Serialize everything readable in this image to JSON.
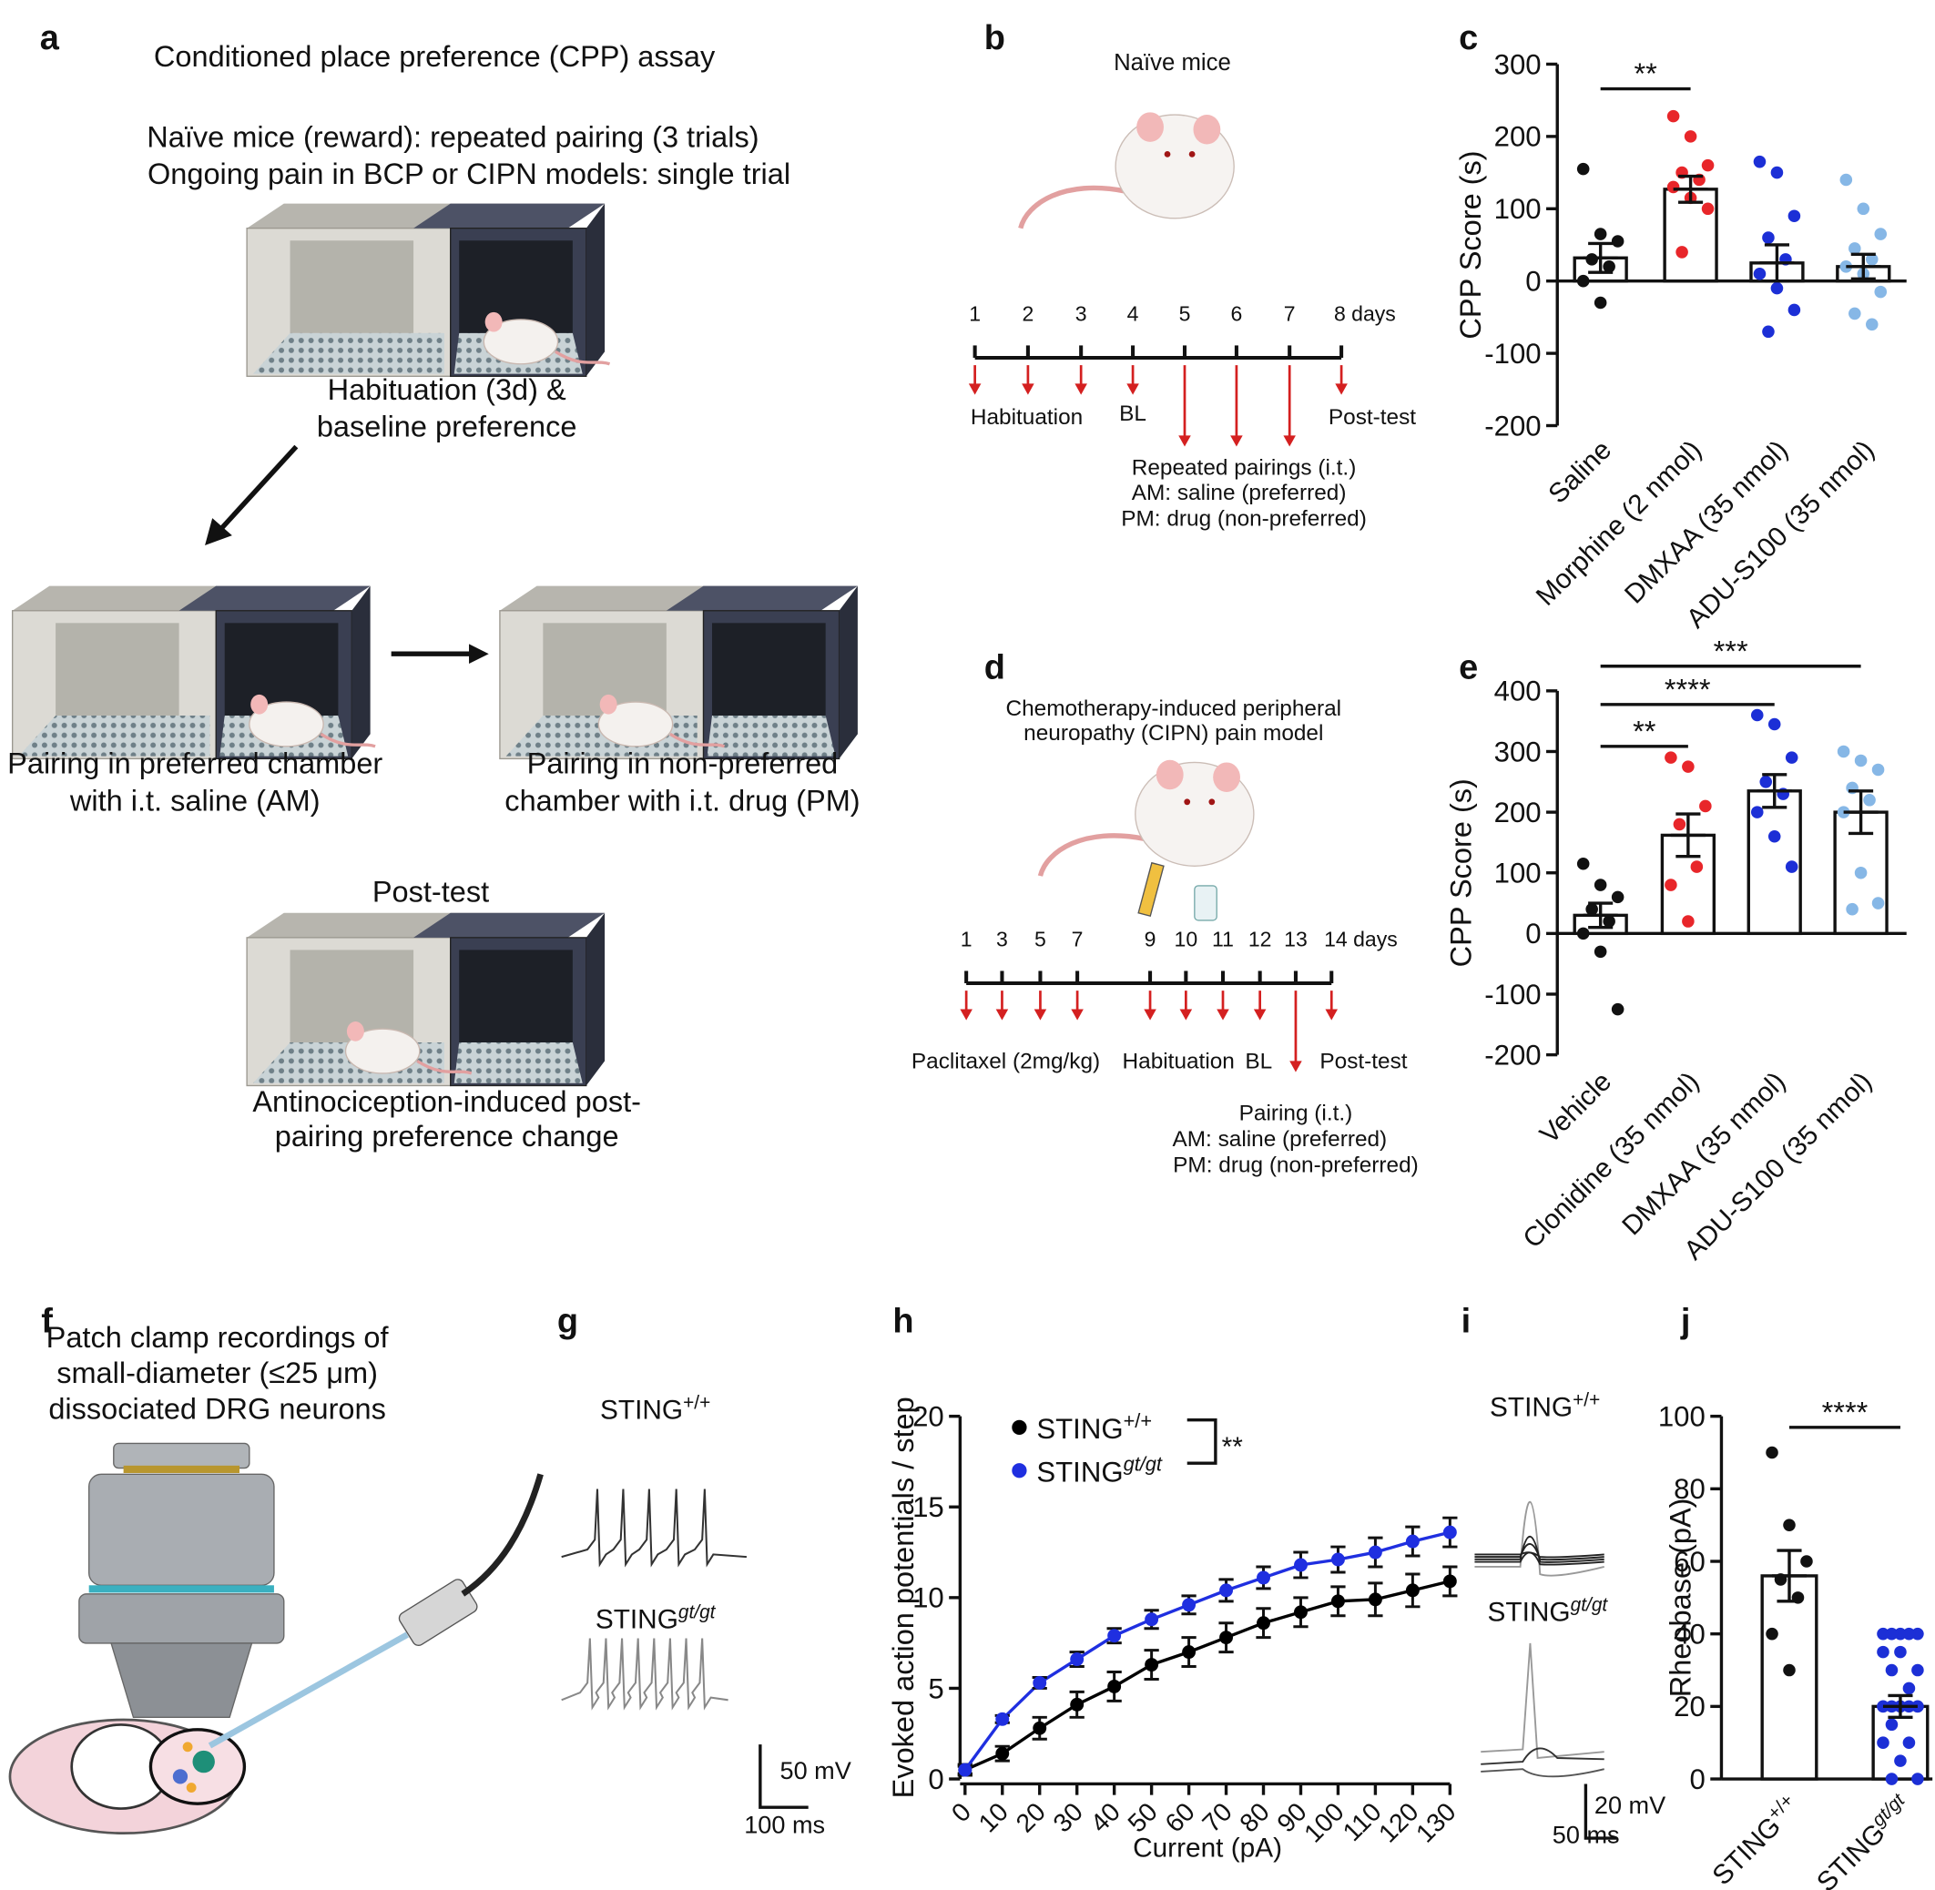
{
  "labels": [
    "a",
    "b",
    "c",
    "d",
    "e",
    "f",
    "g",
    "h",
    "i",
    "j"
  ],
  "a": {
    "title": "Conditioned place preference (CPP) assay",
    "protocol": [
      "Naïve mice (reward): repeated pairing (3 trials)",
      "Ongoing pain in BCP or CIPN models: single trial"
    ],
    "habituation": [
      "Habituation (3d) &",
      "baseline preference"
    ],
    "pairing_am": [
      "Pairing in preferred chamber",
      "with i.t. saline (AM)"
    ],
    "pairing_pm": [
      "Pairing in non-preferred",
      "chamber with i.t. drug (PM)"
    ],
    "post_test": "Post-test",
    "outcome": [
      "Antinociception-induced post-",
      "pairing preference change"
    ]
  },
  "b": {
    "title": "Naïve mice",
    "days": [
      "1",
      "2",
      "3",
      "4",
      "5",
      "6",
      "7",
      "8 days"
    ],
    "events": [
      "Habituation",
      "BL",
      "Post-test"
    ],
    "pairing": [
      "Repeated pairings (i.t.)",
      "AM: saline (preferred)",
      "PM: drug (non-preferred)"
    ]
  },
  "d": {
    "title": [
      "Chemotherapy-induced peripheral",
      "neuropathy (CIPN) pain model"
    ],
    "days": [
      "1",
      "3",
      "5",
      "7",
      "9",
      "10",
      "11",
      "12",
      "13",
      "14 days"
    ],
    "events": [
      "Paclitaxel (2mg/kg)",
      "Habituation",
      "BL",
      "Post-test"
    ],
    "pairing": [
      "Pairing (i.t.)",
      "AM: saline (preferred)",
      "PM: drug (non-preferred)"
    ]
  },
  "f": {
    "title": [
      "Patch clamp recordings of",
      "small-diameter (≤25 μm)",
      "dissociated DRG neurons"
    ]
  },
  "g": {
    "genotypes": [
      {
        "base": "STING",
        "sup": "+/+"
      },
      {
        "base": "STING",
        "sup": "gt/gt"
      }
    ],
    "scale": [
      "50 mV",
      "100 ms"
    ]
  },
  "i": {
    "genotypes": [
      {
        "base": "STING",
        "sup": "+/+"
      },
      {
        "base": "STING",
        "sup": "gt/gt"
      }
    ],
    "scale": [
      "20 mV",
      "50 ms"
    ]
  },
  "chart_data": [
    {
      "type": "bar",
      "ylabel": "CPP Score (s)",
      "categories": [
        "Saline",
        "Morphine (2 nmol)",
        "DMXAA (35 nmol)",
        "ADU-S100 (35 nmol)"
      ],
      "values": [
        32,
        127,
        25,
        20
      ],
      "errors": [
        20,
        18,
        25,
        17
      ],
      "points": [
        [
          155,
          65,
          55,
          30,
          20,
          0,
          -30
        ],
        [
          228,
          200,
          160,
          150,
          140,
          130,
          115,
          100,
          40
        ],
        [
          165,
          150,
          90,
          60,
          30,
          10,
          -10,
          -40,
          -70
        ],
        [
          140,
          100,
          65,
          45,
          30,
          20,
          10,
          -15,
          -45,
          -60
        ]
      ],
      "colors": [
        "#111111",
        "#e8262a",
        "#1c2fd6",
        "#86b7e6"
      ],
      "ylim": [
        -200,
        300
      ],
      "yticks": [
        -200,
        -100,
        0,
        100,
        200,
        300
      ],
      "annotations": [
        {
          "text": "**",
          "between": [
            0,
            1
          ]
        }
      ]
    },
    {
      "type": "bar",
      "ylabel": "CPP Score (s)",
      "categories": [
        "Vehicle",
        "Clonidine (35 nmol)",
        "DMXAA (35 nmol)",
        "ADU-S100 (35 nmol)"
      ],
      "values": [
        30,
        162,
        235,
        200
      ],
      "errors": [
        20,
        35,
        27,
        35
      ],
      "points": [
        [
          115,
          80,
          60,
          40,
          20,
          0,
          -30,
          -125
        ],
        [
          290,
          275,
          210,
          180,
          110,
          80,
          20
        ],
        [
          360,
          345,
          290,
          250,
          230,
          200,
          160,
          110
        ],
        [
          300,
          285,
          270,
          240,
          220,
          200,
          100,
          50,
          40
        ]
      ],
      "colors": [
        "#111111",
        "#e8262a",
        "#1c2fd6",
        "#86b7e6"
      ],
      "ylim": [
        -200,
        400
      ],
      "yticks": [
        -200,
        -100,
        0,
        100,
        200,
        300,
        400
      ],
      "annotations": [
        {
          "text": "**",
          "between": [
            0,
            1
          ]
        },
        {
          "text": "****",
          "between": [
            0,
            2
          ]
        },
        {
          "text": "***",
          "between": [
            0,
            3
          ]
        }
      ]
    },
    {
      "type": "line",
      "xlabel": "Current (pA)",
      "ylabel": "Evoked action potentials / step",
      "x": [
        0,
        10,
        20,
        30,
        40,
        50,
        60,
        70,
        80,
        90,
        100,
        110,
        120,
        130
      ],
      "xlim": [
        0,
        130
      ],
      "xticks": [
        0,
        10,
        20,
        30,
        40,
        50,
        60,
        70,
        80,
        90,
        100,
        110,
        120,
        130
      ],
      "ylim": [
        0,
        20
      ],
      "yticks": [
        0,
        5,
        10,
        15,
        20
      ],
      "series": [
        {
          "name": "STING",
          "name_sup": "+/+",
          "color": "#000000",
          "values": [
            0.5,
            1.4,
            2.8,
            4.1,
            5.1,
            6.3,
            7.0,
            7.8,
            8.6,
            9.2,
            9.8,
            9.9,
            10.4,
            10.9
          ],
          "errors": [
            0.3,
            0.4,
            0.6,
            0.7,
            0.8,
            0.8,
            0.8,
            0.8,
            0.8,
            0.8,
            0.8,
            0.9,
            0.9,
            0.8
          ]
        },
        {
          "name": "STING",
          "name_sup": "gt/gt",
          "color": "#1f2fe0",
          "values": [
            0.5,
            3.3,
            5.3,
            6.6,
            7.9,
            8.8,
            9.6,
            10.4,
            11.1,
            11.8,
            12.1,
            12.5,
            13.1,
            13.6
          ],
          "errors": [
            0.2,
            0.2,
            0.3,
            0.4,
            0.4,
            0.5,
            0.5,
            0.6,
            0.6,
            0.7,
            0.7,
            0.8,
            0.8,
            0.8
          ]
        }
      ],
      "annotation": "**"
    },
    {
      "type": "bar",
      "ylabel": "Rheobase (pA)",
      "categories": [
        "STING",
        "STING"
      ],
      "category_sups": [
        "+/+",
        "gt/gt"
      ],
      "values": [
        56,
        20
      ],
      "errors": [
        7,
        3
      ],
      "points": [
        [
          90,
          70,
          60,
          55,
          50,
          40,
          30
        ],
        [
          40,
          40,
          40,
          40,
          40,
          35,
          35,
          30,
          30,
          25,
          20,
          20,
          20,
          20,
          20,
          20,
          20,
          20,
          15,
          10,
          10,
          5,
          0,
          0
        ]
      ],
      "colors": [
        "#111111",
        "#1c2fd6"
      ],
      "ylim": [
        0,
        100
      ],
      "yticks": [
        0,
        20,
        40,
        60,
        80,
        100
      ],
      "annotations": [
        {
          "text": "****",
          "between": [
            0,
            1
          ]
        }
      ]
    }
  ]
}
